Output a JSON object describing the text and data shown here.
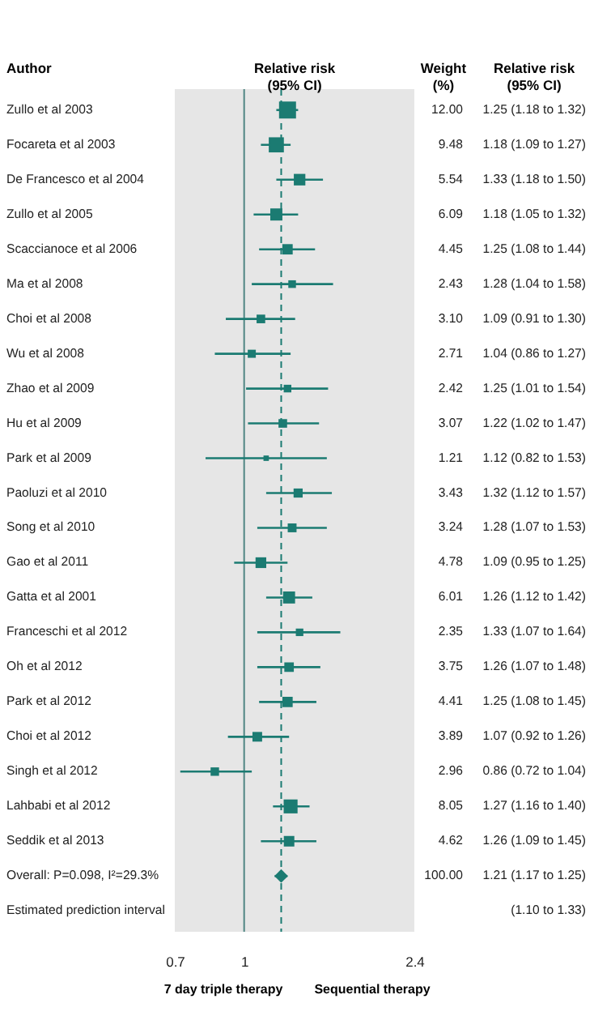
{
  "chart_data": {
    "type": "scatter",
    "orientation": "horizontal",
    "categories": [
      "Zullo et al 2003",
      "Focareta et al 2003",
      "De Francesco et al 2004",
      "Zullo et al 2005",
      "Scaccianoce et al 2006",
      "Ma et al 2008",
      "Choi et al 2008",
      "Wu et al 2008",
      "Zhao et al 2009",
      "Hu et al 2009",
      "Park et al 2009",
      "Paoluzi et al 2010",
      "Song et al 2010",
      "Gao et al 2011",
      "Gatta et al 2001",
      "Franceschi et al 2012",
      "Oh et al 2012",
      "Park et al 2012",
      "Choi et al 2012",
      "Singh et al 2012",
      "Lahbabi et al 2012",
      "Seddik et al 2013",
      "Overall: P=0.098, I²=29.3%",
      "Estimated prediction interval"
    ],
    "series": [
      {
        "color": "#1b7b72",
        "marker": "square",
        "values": [
          1.25,
          1.18,
          1.33,
          1.18,
          1.25,
          1.28,
          1.09,
          1.04,
          1.25,
          1.22,
          1.12,
          1.32,
          1.28,
          1.09,
          1.26,
          1.33,
          1.26,
          1.25,
          1.07,
          0.86,
          1.27,
          1.26,
          null,
          null
        ],
        "errors": [
          [
            1.18,
            1.32
          ],
          [
            1.09,
            1.27
          ],
          [
            1.18,
            1.5
          ],
          [
            1.05,
            1.32
          ],
          [
            1.08,
            1.44
          ],
          [
            1.04,
            1.58
          ],
          [
            0.91,
            1.3
          ],
          [
            0.86,
            1.27
          ],
          [
            1.01,
            1.54
          ],
          [
            1.02,
            1.47
          ],
          [
            0.82,
            1.53
          ],
          [
            1.12,
            1.57
          ],
          [
            1.07,
            1.53
          ],
          [
            0.95,
            1.25
          ],
          [
            1.12,
            1.42
          ],
          [
            1.07,
            1.64
          ],
          [
            1.07,
            1.48
          ],
          [
            1.08,
            1.45
          ],
          [
            0.92,
            1.26
          ],
          [
            0.72,
            1.04
          ],
          [
            1.16,
            1.4
          ],
          [
            1.09,
            1.45
          ],
          null,
          null
        ],
        "sizes": [
          1,
          0.79,
          0.462,
          0.508,
          0.371,
          0.203,
          0.258,
          0.226,
          0.202,
          0.256,
          0.101,
          0.286,
          0.27,
          0.398,
          0.501,
          0.196,
          0.313,
          0.368,
          0.324,
          0.247,
          0.671,
          0.385,
          null,
          null
        ],
        "value_labels": [
          "1.25 (1.18 to 1.32)",
          "1.18 (1.09 to 1.27)",
          "1.33 (1.18 to 1.50)",
          "1.18 (1.05 to 1.32)",
          "1.25 (1.08 to 1.44)",
          "1.28 (1.04 to 1.58)",
          "1.09 (0.91 to 1.30)",
          "1.04 (0.86 to 1.27)",
          "1.25 (1.01 to 1.54)",
          "1.22 (1.02 to 1.47)",
          "1.12 (0.82 to 1.53)",
          "1.32 (1.12 to 1.57)",
          "1.28 (1.07 to 1.53)",
          "1.09 (0.95 to 1.25)",
          "1.26 (1.12 to 1.42)",
          "1.33 (1.07 to 1.64)",
          "1.26 (1.07 to 1.48)",
          "1.25 (1.08 to 1.45)",
          "1.07 (0.92 to 1.26)",
          "0.86 (0.72 to 1.04)",
          "1.27 (1.16 to 1.40)",
          "1.26 (1.09 to 1.45)",
          "1.21 (1.17 to 1.25)",
          "(1.10 to 1.33)"
        ]
      },
      {
        "color": "#1b7b72",
        "marker": "diamond",
        "values": [
          null,
          null,
          null,
          null,
          null,
          null,
          null,
          null,
          null,
          null,
          null,
          null,
          null,
          null,
          null,
          null,
          null,
          null,
          null,
          null,
          null,
          null,
          1.21,
          null
        ],
        "errors": [
          null,
          null,
          null,
          null,
          null,
          null,
          null,
          null,
          null,
          null,
          null,
          null,
          null,
          null,
          null,
          null,
          null,
          null,
          null,
          null,
          null,
          null,
          [
            1.17,
            1.25
          ],
          null
        ]
      }
    ],
    "xlim": [
      0.7,
      2.4
    ],
    "xticks": [
      0.7,
      1,
      2.4
    ],
    "log": "x",
    "grid": false,
    "ref_lines": [
      {
        "axis": "x",
        "value": 1,
        "color": "#4f8683",
        "line_style": "solid"
      },
      {
        "axis": "x",
        "value": 1.21,
        "color": "#1b7b72",
        "line_style": "dashed"
      }
    ],
    "annotations": [
      "Author",
      "Relative risk\n(95% CI)",
      "Weight\n(%)",
      "Relative risk\n(95% CI)",
      "7 day triple therapy",
      "Sequential therapy",
      "12.00",
      "9.48",
      "5.54",
      "6.09",
      "4.45",
      "2.43",
      "3.10",
      "2.71",
      "2.42",
      "3.07",
      "1.21",
      "3.43",
      "3.24",
      "4.78",
      "6.01",
      "2.35",
      "3.75",
      "4.41",
      "3.89",
      "2.96",
      "8.05",
      "4.62",
      "100.00"
    ]
  }
}
